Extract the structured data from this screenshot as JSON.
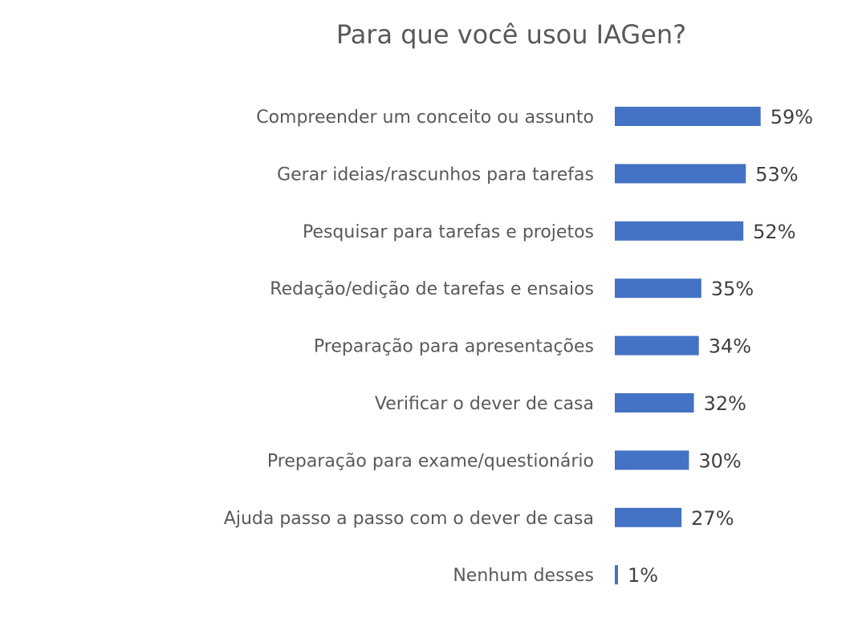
{
  "chart_data": {
    "type": "bar",
    "orientation": "horizontal",
    "title": "Para que você usou IAGen?",
    "categories": [
      "Compreender um conceito ou assunto",
      "Gerar ideias/rascunhos para tarefas",
      "Pesquisar para tarefas e projetos",
      "Redação/edição de tarefas e ensaios",
      "Preparação para apresentações",
      "Verificar o dever de casa",
      "Preparação para exame/questionário",
      "Ajuda passo a passo com o dever de casa",
      "Nenhum desses"
    ],
    "values": [
      59,
      53,
      52,
      35,
      34,
      32,
      30,
      27,
      1
    ],
    "value_labels": [
      "59%",
      "53%",
      "52%",
      "35%",
      "34%",
      "32%",
      "30%",
      "27%",
      "1%"
    ],
    "unit": "%",
    "xlim": [
      0,
      100
    ],
    "grid": false,
    "legend": "none",
    "bar_color": "#4472C4"
  }
}
